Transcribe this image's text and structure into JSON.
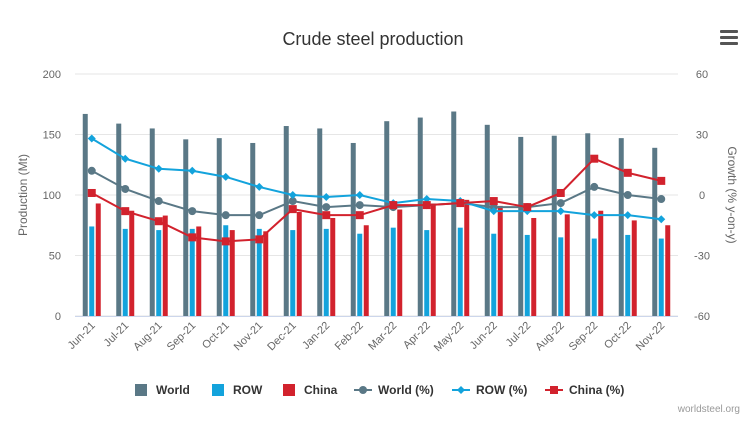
{
  "chart_data": {
    "type": "bar+line",
    "title": "Crude steel production",
    "categories": [
      "Jun-21",
      "Jul-21",
      "Aug-21",
      "Sep-21",
      "Oct-21",
      "Nov-21",
      "Dec-21",
      "Jan-22",
      "Feb-22",
      "Mar-22",
      "Apr-22",
      "May-22",
      "Jun-22",
      "Jul-22",
      "Aug-22",
      "Sep-22",
      "Oct-22",
      "Nov-22"
    ],
    "ylabel": "Production (Mt)",
    "ylim": [
      0,
      200
    ],
    "yticks": [
      0,
      50,
      100,
      150,
      200
    ],
    "y2label": "Growth (% y-on-y)",
    "y2lim": [
      -60,
      60
    ],
    "y2ticks": [
      -60,
      -30,
      0,
      30,
      60
    ],
    "series": [
      {
        "name": "World",
        "type": "bar",
        "axis": "left",
        "color": "#5a7886",
        "values": [
          167,
          159,
          155,
          146,
          147,
          143,
          157,
          155,
          143,
          161,
          164,
          169,
          158,
          148,
          149,
          151,
          147,
          139
        ]
      },
      {
        "name": "ROW",
        "type": "bar",
        "axis": "left",
        "color": "#13a3dc",
        "values": [
          74,
          72,
          71,
          72,
          75,
          72,
          71,
          72,
          68,
          73,
          71,
          73,
          68,
          67,
          65,
          64,
          67,
          64
        ]
      },
      {
        "name": "China",
        "type": "bar",
        "axis": "left",
        "color": "#d2222d",
        "values": [
          93,
          87,
          83,
          74,
          71,
          70,
          86,
          81,
          75,
          88,
          93,
          96,
          91,
          81,
          84,
          87,
          79,
          75
        ]
      },
      {
        "name": "World (%)",
        "type": "line",
        "axis": "right",
        "color": "#5a7886",
        "marker": "circle",
        "values": [
          12,
          3,
          -3,
          -8,
          -10,
          -10,
          -3,
          -6,
          -5,
          -6,
          -5,
          -4,
          -6,
          -6,
          -4,
          4,
          0,
          -2
        ]
      },
      {
        "name": "ROW (%)",
        "type": "line",
        "axis": "right",
        "color": "#13a3dc",
        "marker": "diamond",
        "values": [
          28,
          18,
          13,
          12,
          9,
          4,
          0,
          -1,
          0,
          -4,
          -2,
          -3,
          -8,
          -8,
          -8,
          -10,
          -10,
          -12
        ]
      },
      {
        "name": "China (%)",
        "type": "line",
        "axis": "right",
        "color": "#d2222d",
        "marker": "square",
        "values": [
          1,
          -8,
          -13,
          -21,
          -23,
          -22,
          -7,
          -10,
          -10,
          -5,
          -5,
          -4,
          -3,
          -6,
          1,
          18,
          11,
          7
        ]
      }
    ]
  },
  "credit": "worldsteel.org"
}
